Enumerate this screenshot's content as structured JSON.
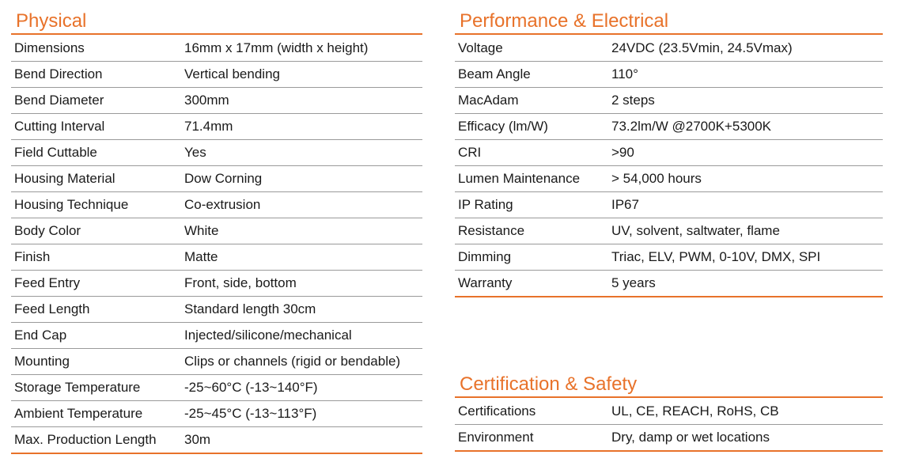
{
  "physical": {
    "title": "Physical",
    "rows": [
      {
        "label": "Dimensions",
        "value": "16mm x 17mm (width x height)"
      },
      {
        "label": "Bend Direction",
        "value": "Vertical bending"
      },
      {
        "label": "Bend Diameter",
        "value": "300mm"
      },
      {
        "label": "Cutting Interval",
        "value": "71.4mm"
      },
      {
        "label": "Field Cuttable",
        "value": "Yes"
      },
      {
        "label": "Housing Material",
        "value": "Dow Corning"
      },
      {
        "label": "Housing Technique",
        "value": "Co-extrusion"
      },
      {
        "label": "Body Color",
        "value": "White"
      },
      {
        "label": "Finish",
        "value": "Matte"
      },
      {
        "label": "Feed Entry",
        "value": "Front, side, bottom"
      },
      {
        "label": "Feed Length",
        "value": "Standard length 30cm"
      },
      {
        "label": "End Cap",
        "value": "Injected/silicone/mechanical"
      },
      {
        "label": "Mounting",
        "value": "Clips or channels (rigid or bendable)"
      },
      {
        "label": "Storage Temperature",
        "value": "-25~60°C (-13~140°F)"
      },
      {
        "label": "Ambient Temperature",
        "value": "-25~45°C (-13~113°F)"
      },
      {
        "label": "Max. Production Length",
        "value": "30m"
      }
    ]
  },
  "performance": {
    "title": "Performance & Electrical",
    "rows": [
      {
        "label": "Voltage",
        "value": "24VDC (23.5Vmin, 24.5Vmax)"
      },
      {
        "label": "Beam Angle",
        "value": "110°"
      },
      {
        "label": "MacAdam",
        "value": "2 steps"
      },
      {
        "label": "Efficacy (lm/W)",
        "value": "73.2lm/W @2700K+5300K"
      },
      {
        "label": "CRI",
        "value": ">90"
      },
      {
        "label": "Lumen Maintenance",
        "value": "> 54,000 hours"
      },
      {
        "label": "IP Rating",
        "value": "IP67"
      },
      {
        "label": "Resistance",
        "value": "UV, solvent, saltwater, flame"
      },
      {
        "label": "Dimming",
        "value": "Triac, ELV, PWM, 0-10V, DMX, SPI"
      },
      {
        "label": "Warranty",
        "value": "5 years"
      }
    ]
  },
  "certification": {
    "title": "Certification & Safety",
    "rows": [
      {
        "label": "Certifications",
        "value": "UL, CE, REACH, RoHS, CB"
      },
      {
        "label": "Environment",
        "value": "Dry, damp or wet locations"
      }
    ]
  },
  "colors": {
    "accent": "#e8722a",
    "divider": "#9a9a9a",
    "text": "#1a1a1a"
  }
}
